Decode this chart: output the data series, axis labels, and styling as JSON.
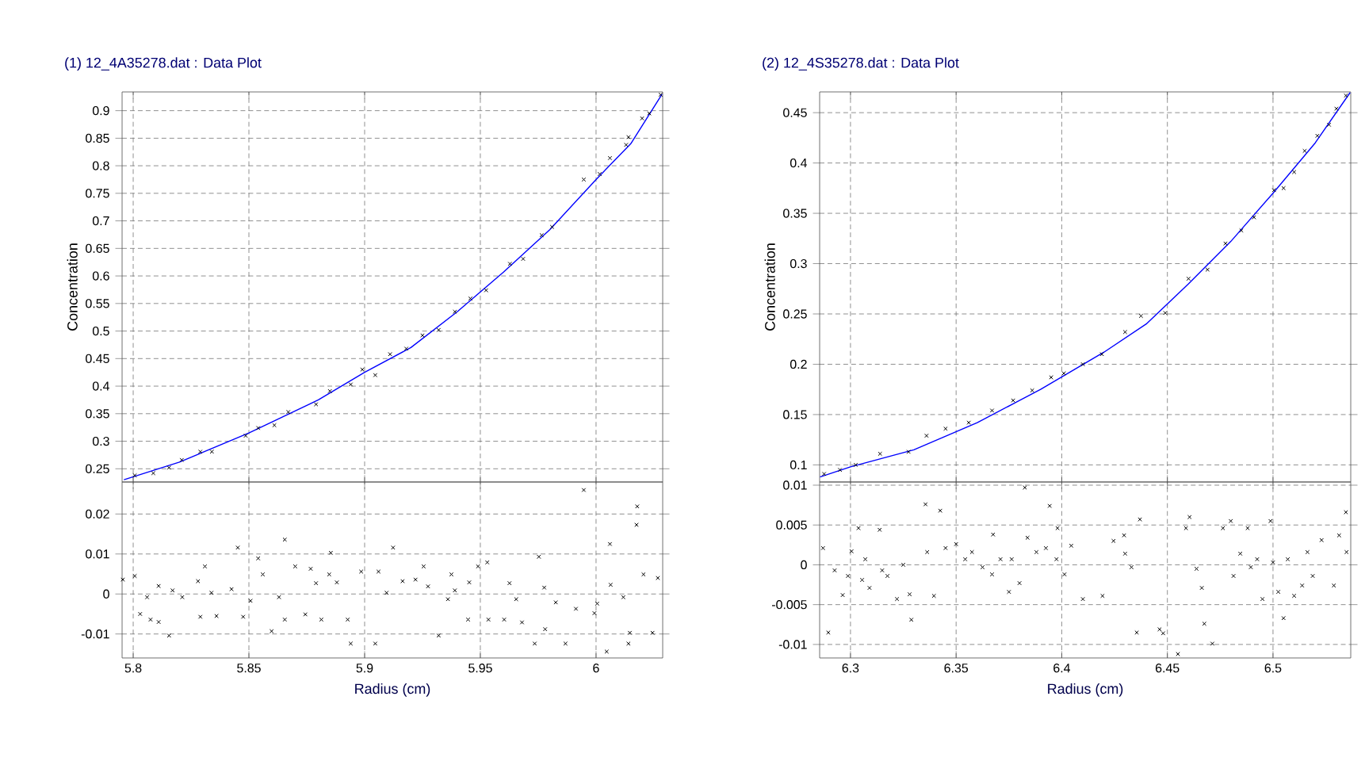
{
  "chart_data": [
    {
      "type": "scatter",
      "title": "(1) 12_4A35278.dat : Data Plot",
      "ylabel": "Concentration",
      "xlim": [
        5.7952,
        6.0288
      ],
      "ylim": [
        0.226,
        0.934
      ],
      "xticks": [
        5.8,
        5.85,
        5.9,
        5.95,
        6
      ],
      "yticks": [
        0.25,
        0.3,
        0.35,
        0.4,
        0.45,
        0.5,
        0.55,
        0.6,
        0.65,
        0.7,
        0.75,
        0.8,
        0.85,
        0.9
      ],
      "tick_labels": "y",
      "grid": true,
      "series": [
        {
          "color": "#000000",
          "marker": "cross",
          "x": [
            5.8007,
            5.8087,
            5.8155,
            5.821,
            5.829,
            5.834,
            5.8486,
            5.854,
            5.861,
            5.867,
            5.879,
            5.885,
            5.894,
            5.899,
            5.9046,
            5.911,
            5.918,
            5.925,
            5.932,
            5.939,
            5.9457,
            5.9525,
            5.9628,
            5.9685,
            5.9765,
            5.981,
            5.9947,
            6.0016,
            6.006,
            6.013,
            6.014,
            6.0199,
            6.023,
            6.0279
          ],
          "values": [
            0.238,
            0.242,
            0.252,
            0.266,
            0.281,
            0.281,
            0.31,
            0.324,
            0.329,
            0.353,
            0.367,
            0.391,
            0.403,
            0.43,
            0.42,
            0.458,
            0.468,
            0.492,
            0.502,
            0.535,
            0.559,
            0.574,
            0.622,
            0.631,
            0.674,
            0.689,
            0.775,
            0.785,
            0.814,
            0.838,
            0.852,
            0.886,
            0.895,
            0.929
          ]
        },
        {
          "type": "line",
          "color": "#0000ff",
          "x": [
            5.796,
            5.82,
            5.85,
            5.88,
            5.9,
            5.92,
            5.94,
            5.96,
            5.98,
            6.0,
            6.015,
            6.0285
          ],
          "values": [
            0.23,
            0.262,
            0.315,
            0.375,
            0.425,
            0.47,
            0.535,
            0.607,
            0.684,
            0.775,
            0.84,
            0.93
          ]
        }
      ]
    },
    {
      "type": "scatter",
      "xlabel": "Radius (cm)",
      "xlim": [
        5.7952,
        6.0288
      ],
      "ylim": [
        -0.016,
        0.028
      ],
      "xticks": [
        5.8,
        5.85,
        5.9,
        5.95,
        6
      ],
      "yticks": [
        -0.01,
        0,
        0.01,
        0.02
      ],
      "grid": true,
      "series": [
        {
          "color": "#000000",
          "marker": "cross",
          "x": [
            5.7955,
            5.8007,
            5.806,
            5.811,
            5.803,
            5.8075,
            5.811,
            5.8155,
            5.817,
            5.8212,
            5.829,
            5.831,
            5.828,
            5.8338,
            5.836,
            5.8425,
            5.8452,
            5.8475,
            5.8507,
            5.854,
            5.856,
            5.8598,
            5.863,
            5.8655,
            5.8655,
            5.87,
            5.8744,
            5.8767,
            5.879,
            5.8813,
            5.8847,
            5.8854,
            5.888,
            5.8927,
            5.894,
            5.8985,
            5.9046,
            5.906,
            5.9095,
            5.9123,
            5.9164,
            5.922,
            5.9255,
            5.9274,
            5.932,
            5.936,
            5.9375,
            5.939,
            5.9447,
            5.9452,
            5.949,
            5.953,
            5.9535,
            5.9603,
            5.9626,
            5.9655,
            5.968,
            5.9735,
            5.9753,
            5.9776,
            5.978,
            5.9826,
            5.9868,
            5.9913,
            5.9947,
            5.9993,
            6.0005,
            6.0046,
            6.006,
            6.0063,
            6.0118,
            6.014,
            6.0146,
            6.0175,
            6.0178,
            6.0205,
            6.0244,
            6.0267
          ],
          "values": [
            0.0036,
            0.0045,
            -0.0008,
            0.002,
            -0.005,
            -0.0064,
            -0.007,
            -0.0104,
            0.0009,
            -0.0008,
            -0.0057,
            0.0069,
            0.0032,
            0.0003,
            -0.0055,
            0.0012,
            0.0116,
            -0.0057,
            -0.0017,
            0.0089,
            0.0049,
            -0.0093,
            -0.0008,
            0.0136,
            -0.0064,
            0.0069,
            -0.0051,
            0.0063,
            0.0027,
            -0.0064,
            0.0049,
            0.0103,
            0.0029,
            -0.0064,
            -0.0124,
            0.0056,
            -0.0124,
            0.0056,
            0.0003,
            0.0116,
            0.0032,
            0.0036,
            0.0069,
            0.0019,
            -0.0104,
            -0.0013,
            0.0049,
            0.0009,
            -0.0064,
            0.0029,
            0.0069,
            0.0079,
            -0.0064,
            -0.0064,
            0.0027,
            -0.0013,
            -0.0071,
            -0.0124,
            0.0093,
            0.0016,
            -0.0088,
            -0.0021,
            -0.0124,
            -0.0037,
            0.026,
            -0.0048,
            -0.0024,
            -0.0144,
            0.0125,
            0.0023,
            -0.0008,
            -0.0124,
            -0.0097,
            0.0173,
            0.0219,
            0.0049,
            -0.0097,
            0.004
          ]
        }
      ]
    },
    {
      "type": "scatter",
      "title": "(2) 12_4S35278.dat : Data Plot",
      "ylabel": "Concentration",
      "xlim": [
        6.2854,
        6.5368
      ],
      "ylim": [
        0.083,
        0.4706
      ],
      "xticks": [
        6.3,
        6.35,
        6.4,
        6.45,
        6.5
      ],
      "yticks": [
        0.1,
        0.15,
        0.2,
        0.25,
        0.3,
        0.35,
        0.4,
        0.45
      ],
      "tick_labels": "y",
      "grid": true,
      "series": [
        {
          "color": "#000000",
          "marker": "cross",
          "x": [
            6.2875,
            6.295,
            6.3025,
            6.314,
            6.3275,
            6.336,
            6.345,
            6.356,
            6.367,
            6.377,
            6.386,
            6.395,
            6.401,
            6.41,
            6.419,
            6.43,
            6.4375,
            6.449,
            6.46,
            6.469,
            6.4775,
            6.485,
            6.491,
            6.5005,
            6.505,
            6.51,
            6.515,
            6.521,
            6.5265,
            6.53,
            6.5345
          ],
          "values": [
            0.091,
            0.095,
            0.1,
            0.111,
            0.113,
            0.129,
            0.136,
            0.142,
            0.154,
            0.164,
            0.174,
            0.187,
            0.191,
            0.2,
            0.21,
            0.232,
            0.248,
            0.251,
            0.285,
            0.294,
            0.32,
            0.333,
            0.346,
            0.373,
            0.375,
            0.391,
            0.412,
            0.427,
            0.438,
            0.454,
            0.467
          ]
        },
        {
          "type": "line",
          "color": "#0000ff",
          "x": [
            6.2856,
            6.3,
            6.33,
            6.36,
            6.39,
            6.42,
            6.44,
            6.46,
            6.48,
            6.5,
            6.52,
            6.5365
          ],
          "values": [
            0.088,
            0.098,
            0.115,
            0.142,
            0.175,
            0.212,
            0.24,
            0.28,
            0.322,
            0.37,
            0.42,
            0.47
          ]
        }
      ]
    },
    {
      "type": "scatter",
      "xlabel": "Radius (cm)",
      "xlim": [
        6.2854,
        6.5368
      ],
      "ylim": [
        -0.0117,
        0.0104
      ],
      "xticks": [
        6.3,
        6.35,
        6.4,
        6.45,
        6.5
      ],
      "yticks": [
        -0.01,
        -0.005,
        0,
        0.005,
        0.01
      ],
      "grid": true,
      "series": [
        {
          "color": "#000000",
          "marker": "cross",
          "x": [
            6.287,
            6.2895,
            6.2925,
            6.2963,
            6.2988,
            6.3005,
            6.3038,
            6.3055,
            6.307,
            6.309,
            6.3138,
            6.315,
            6.3175,
            6.322,
            6.325,
            6.328,
            6.3288,
            6.3355,
            6.3363,
            6.3395,
            6.3425,
            6.345,
            6.35,
            6.3543,
            6.3575,
            6.3625,
            6.367,
            6.3675,
            6.371,
            6.375,
            6.3763,
            6.38,
            6.3825,
            6.3838,
            6.388,
            6.3925,
            6.3943,
            6.3975,
            6.398,
            6.4013,
            6.4045,
            6.41,
            6.4193,
            6.4245,
            6.4295,
            6.43,
            6.433,
            6.4355,
            6.437,
            6.4463,
            6.448,
            6.455,
            6.4588,
            6.4605,
            6.4638,
            6.4663,
            6.4675,
            6.4713,
            6.4763,
            6.48,
            6.4813,
            6.4845,
            6.488,
            6.4895,
            6.4925,
            6.495,
            6.4988,
            6.5,
            6.5025,
            6.505,
            6.507,
            6.51,
            6.5138,
            6.5163,
            6.5188,
            6.523,
            6.5288,
            6.5313,
            6.5345,
            6.5348
          ],
          "values": [
            0.0021,
            -0.0085,
            -0.0007,
            -0.0038,
            -0.0014,
            0.0017,
            0.0046,
            -0.0019,
            0.0007,
            -0.0029,
            0.0044,
            -0.0007,
            -0.0014,
            -0.0043,
            0,
            -0.0037,
            -0.0069,
            0.0076,
            0.0016,
            -0.0039,
            0.0068,
            0.0021,
            0.0026,
            0.0007,
            0.0016,
            -0.0003,
            -0.0012,
            0.0038,
            0.0007,
            -0.0034,
            0.0007,
            -0.0023,
            0.0097,
            0.0034,
            0.0016,
            0.0021,
            0.0074,
            0.0007,
            0.0046,
            -0.0012,
            0.0024,
            -0.0043,
            -0.0039,
            0.003,
            0.0037,
            0.0014,
            -0.0003,
            -0.0085,
            0.0057,
            -0.0081,
            -0.0086,
            -0.0112,
            0.0046,
            0.006,
            -0.0005,
            -0.0029,
            -0.0074,
            -0.0099,
            0.0046,
            0.0055,
            -0.0014,
            0.0014,
            0.0046,
            -0.0003,
            0.0007,
            -0.0043,
            0.0055,
            0.0003,
            -0.0034,
            -0.0067,
            0.0007,
            -0.0039,
            -0.0026,
            0.0016,
            -0.0014,
            0.0031,
            -0.0026,
            0.0037,
            0.0066,
            0.0016
          ]
        }
      ]
    }
  ]
}
